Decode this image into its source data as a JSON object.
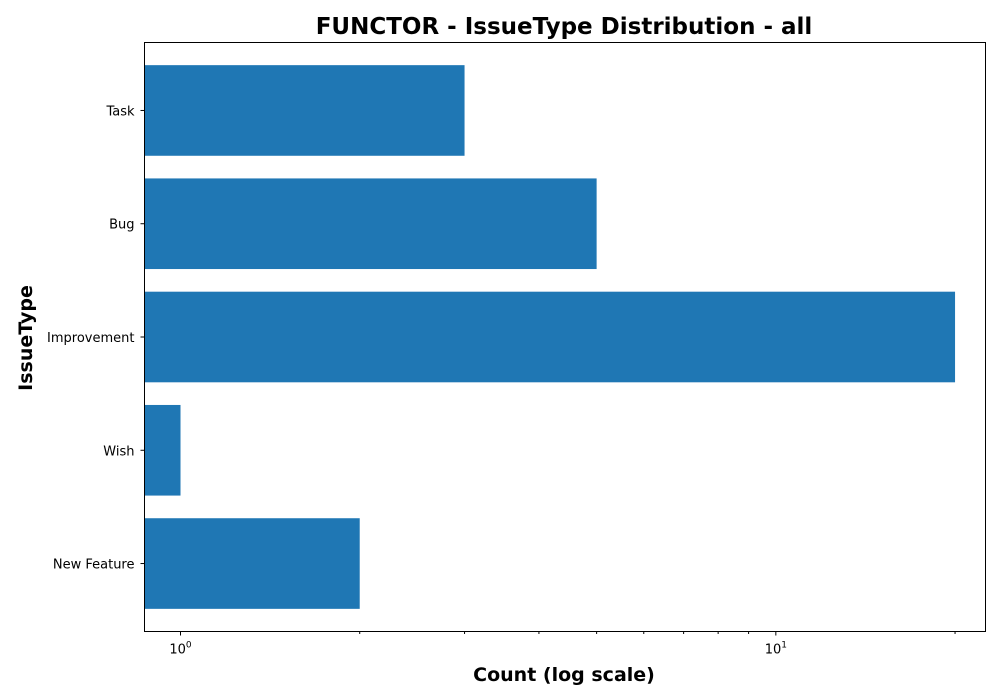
{
  "chart_data": {
    "type": "bar",
    "orientation": "horizontal",
    "title": "FUNCTOR - IssueType Distribution - all",
    "xlabel": "Count (log scale)",
    "ylabel": "IssueType",
    "x_scale": "log",
    "xlim": [
      0.87,
      22.5
    ],
    "categories": [
      "Task",
      "Bug",
      "Improvement",
      "Wish",
      "New Feature"
    ],
    "values": [
      3,
      5,
      20,
      1,
      2
    ],
    "bar_color": "#1f77b4",
    "x_major_ticks": [
      {
        "value": 1,
        "base": "10",
        "exp": "0"
      },
      {
        "value": 10,
        "base": "10",
        "exp": "1"
      }
    ],
    "x_minor_ticks": [
      2,
      3,
      4,
      5,
      6,
      7,
      8,
      9,
      20
    ],
    "grid": false,
    "legend": "none"
  }
}
